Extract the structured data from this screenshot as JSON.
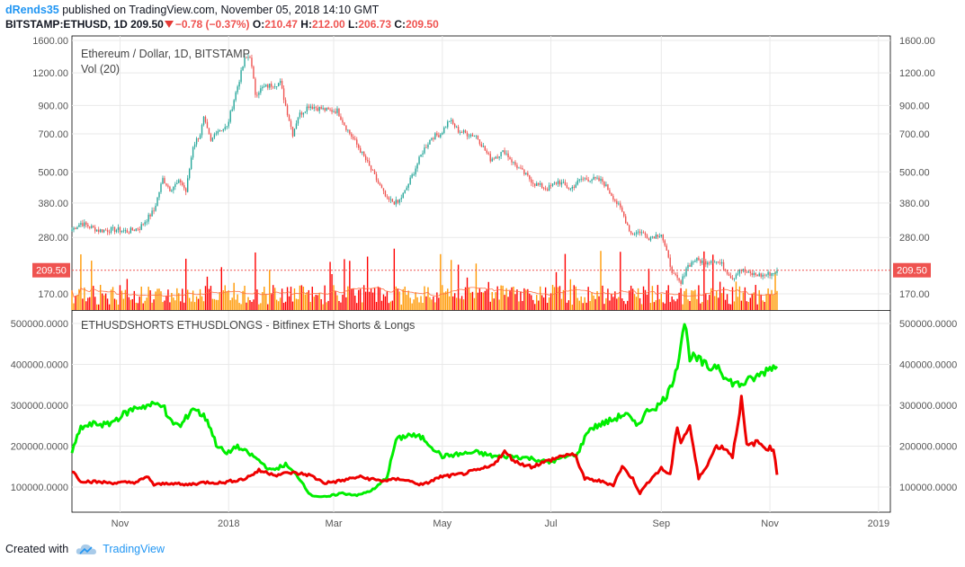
{
  "header": {
    "author": "dRends35",
    "published": "published on TradingView.com, November 05, 2018 14:10 GMT",
    "symbol": "BITSTAMP:ETHUSD, 1D",
    "last": "209.50",
    "change": "−0.78 (−0.37%)",
    "open_label": "O:",
    "open": "210.47",
    "high_label": "H:",
    "high": "212.00",
    "low_label": "L:",
    "low": "206.73",
    "close_label": "C:",
    "close": "209.50"
  },
  "footer": {
    "created_with": "Created with",
    "brand": "TradingView"
  },
  "colors": {
    "up": "#26a69a",
    "down": "#ef5350",
    "longs": "#00ee00",
    "shorts": "#ee0000",
    "vol_red": "#ff0000",
    "vol_orange": "#ff9800",
    "price_tag": "#ef5350"
  },
  "chart_data": [
    {
      "type": "candlestick",
      "title": "Ethereum / Dollar, 1D, BITSTAMP",
      "subtitle": "Vol (20)",
      "y_scale": "log",
      "y_ticks": [
        "1600.00",
        "1200.00",
        "900.00",
        "700.00",
        "500.00",
        "380.00",
        "280.00",
        "170.00"
      ],
      "y_tick_values": [
        1600,
        1200,
        900,
        700,
        500,
        380,
        280,
        170
      ],
      "last_price_label": "209.50",
      "last_price": 209.5,
      "close_path": [
        [
          "2017-10-05",
          300
        ],
        [
          "2017-10-10",
          318
        ],
        [
          "2017-10-20",
          298
        ],
        [
          "2017-10-30",
          300
        ],
        [
          "2017-11-05",
          295
        ],
        [
          "2017-11-12",
          305
        ],
        [
          "2017-11-20",
          355
        ],
        [
          "2017-11-25",
          470
        ],
        [
          "2017-11-29",
          430
        ],
        [
          "2017-12-05",
          460
        ],
        [
          "2017-12-08",
          420
        ],
        [
          "2017-12-12",
          630
        ],
        [
          "2017-12-16",
          700
        ],
        [
          "2017-12-18",
          800
        ],
        [
          "2017-12-22",
          650
        ],
        [
          "2017-12-25",
          720
        ],
        [
          "2017-12-31",
          740
        ],
        [
          "2018-01-04",
          950
        ],
        [
          "2018-01-08",
          1200
        ],
        [
          "2018-01-10",
          1350
        ],
        [
          "2018-01-13",
          1400
        ],
        [
          "2018-01-16",
          1000
        ],
        [
          "2018-01-20",
          1050
        ],
        [
          "2018-01-25",
          1080
        ],
        [
          "2018-01-30",
          1100
        ],
        [
          "2018-02-02",
          900
        ],
        [
          "2018-02-06",
          700
        ],
        [
          "2018-02-09",
          820
        ],
        [
          "2018-02-15",
          900
        ],
        [
          "2018-02-20",
          880
        ],
        [
          "2018-02-26",
          860
        ],
        [
          "2018-03-03",
          860
        ],
        [
          "2018-03-08",
          740
        ],
        [
          "2018-03-15",
          620
        ],
        [
          "2018-03-20",
          540
        ],
        [
          "2018-03-27",
          440
        ],
        [
          "2018-03-31",
          390
        ],
        [
          "2018-04-06",
          380
        ],
        [
          "2018-04-10",
          420
        ],
        [
          "2018-04-15",
          500
        ],
        [
          "2018-04-20",
          600
        ],
        [
          "2018-04-25",
          680
        ],
        [
          "2018-04-30",
          700
        ],
        [
          "2018-05-05",
          790
        ],
        [
          "2018-05-10",
          720
        ],
        [
          "2018-05-15",
          700
        ],
        [
          "2018-05-20",
          690
        ],
        [
          "2018-05-28",
          560
        ],
        [
          "2018-06-05",
          600
        ],
        [
          "2018-06-10",
          540
        ],
        [
          "2018-06-15",
          500
        ],
        [
          "2018-06-22",
          450
        ],
        [
          "2018-06-29",
          430
        ],
        [
          "2018-07-05",
          460
        ],
        [
          "2018-07-12",
          430
        ],
        [
          "2018-07-18",
          470
        ],
        [
          "2018-07-24",
          470
        ],
        [
          "2018-07-30",
          460
        ],
        [
          "2018-08-05",
          400
        ],
        [
          "2018-08-10",
          350
        ],
        [
          "2018-08-15",
          290
        ],
        [
          "2018-08-20",
          295
        ],
        [
          "2018-08-25",
          280
        ],
        [
          "2018-09-01",
          290
        ],
        [
          "2018-09-05",
          230
        ],
        [
          "2018-09-08",
          200
        ],
        [
          "2018-09-12",
          185
        ],
        [
          "2018-09-15",
          215
        ],
        [
          "2018-09-20",
          230
        ],
        [
          "2018-09-25",
          225
        ],
        [
          "2018-09-30",
          230
        ],
        [
          "2018-10-05",
          220
        ],
        [
          "2018-10-11",
          195
        ],
        [
          "2018-10-15",
          212
        ],
        [
          "2018-10-20",
          203
        ],
        [
          "2018-10-28",
          200
        ],
        [
          "2018-11-03",
          205
        ],
        [
          "2018-11-05",
          209.5
        ]
      ]
    },
    {
      "type": "line",
      "title": "ETHUSDSHORTS ETHUSDLONGS - Bitfinex ETH Shorts & Longs",
      "y_ticks": [
        "500000.0000",
        "400000.0000",
        "300000.0000",
        "200000.0000",
        "100000.0000"
      ],
      "y_tick_values": [
        500000,
        400000,
        300000,
        200000,
        100000
      ],
      "x_ticks": [
        {
          "label": "Nov",
          "date": "2017-11-01"
        },
        {
          "label": "2018",
          "date": "2018-01-01"
        },
        {
          "label": "Mar",
          "date": "2018-03-01"
        },
        {
          "label": "May",
          "date": "2018-05-01"
        },
        {
          "label": "Jul",
          "date": "2018-07-01"
        },
        {
          "label": "Sep",
          "date": "2018-09-01"
        },
        {
          "label": "Nov",
          "date": "2018-11-01"
        },
        {
          "label": "2019",
          "date": "2019-01-01"
        }
      ],
      "series": [
        {
          "color": "#00ee00",
          "points": [
            [
              "2017-10-05",
              185000
            ],
            [
              "2017-10-10",
              245000
            ],
            [
              "2017-10-18",
              255000
            ],
            [
              "2017-10-25",
              252000
            ],
            [
              "2017-11-02",
              275000
            ],
            [
              "2017-11-10",
              295000
            ],
            [
              "2017-11-18",
              300000
            ],
            [
              "2017-11-25",
              305000
            ],
            [
              "2017-11-28",
              265000
            ],
            [
              "2017-12-05",
              248000
            ],
            [
              "2017-12-12",
              295000
            ],
            [
              "2017-12-20",
              265000
            ],
            [
              "2017-12-25",
              205000
            ],
            [
              "2017-12-31",
              180000
            ],
            [
              "2018-01-05",
              200000
            ],
            [
              "2018-01-15",
              175000
            ],
            [
              "2018-01-25",
              140000
            ],
            [
              "2018-02-02",
              155000
            ],
            [
              "2018-02-10",
              120000
            ],
            [
              "2018-02-16",
              80000
            ],
            [
              "2018-02-25",
              75000
            ],
            [
              "2018-03-05",
              85000
            ],
            [
              "2018-03-15",
              80000
            ],
            [
              "2018-03-24",
              95000
            ],
            [
              "2018-03-31",
              125000
            ],
            [
              "2018-04-05",
              215000
            ],
            [
              "2018-04-12",
              228000
            ],
            [
              "2018-04-20",
              220000
            ],
            [
              "2018-04-26",
              195000
            ],
            [
              "2018-05-01",
              175000
            ],
            [
              "2018-05-10",
              180000
            ],
            [
              "2018-05-20",
              185000
            ],
            [
              "2018-05-30",
              175000
            ],
            [
              "2018-06-10",
              175000
            ],
            [
              "2018-06-20",
              170000
            ],
            [
              "2018-06-30",
              160000
            ],
            [
              "2018-07-10",
              175000
            ],
            [
              "2018-07-16",
              180000
            ],
            [
              "2018-07-22",
              240000
            ],
            [
              "2018-07-30",
              255000
            ],
            [
              "2018-08-05",
              265000
            ],
            [
              "2018-08-12",
              280000
            ],
            [
              "2018-08-18",
              250000
            ],
            [
              "2018-08-25",
              290000
            ],
            [
              "2018-08-31",
              300000
            ],
            [
              "2018-09-06",
              340000
            ],
            [
              "2018-09-10",
              400000
            ],
            [
              "2018-09-14",
              505000
            ],
            [
              "2018-09-17",
              420000
            ],
            [
              "2018-09-22",
              410000
            ],
            [
              "2018-09-28",
              390000
            ],
            [
              "2018-10-03",
              400000
            ],
            [
              "2018-10-08",
              360000
            ],
            [
              "2018-10-15",
              350000
            ],
            [
              "2018-10-25",
              370000
            ],
            [
              "2018-11-02",
              395000
            ],
            [
              "2018-11-05",
              395000
            ]
          ]
        },
        {
          "color": "#ee0000",
          "points": [
            [
              "2017-10-05",
              140000
            ],
            [
              "2017-10-10",
              115000
            ],
            [
              "2017-10-20",
              112000
            ],
            [
              "2017-10-30",
              110000
            ],
            [
              "2017-11-10",
              112000
            ],
            [
              "2017-11-17",
              125000
            ],
            [
              "2017-11-20",
              105000
            ],
            [
              "2017-11-30",
              110000
            ],
            [
              "2017-12-07",
              105000
            ],
            [
              "2017-12-20",
              112000
            ],
            [
              "2017-12-28",
              110000
            ],
            [
              "2018-01-03",
              115000
            ],
            [
              "2018-01-10",
              120000
            ],
            [
              "2018-01-18",
              140000
            ],
            [
              "2018-01-28",
              130000
            ],
            [
              "2018-02-05",
              135000
            ],
            [
              "2018-02-15",
              130000
            ],
            [
              "2018-02-24",
              110000
            ],
            [
              "2018-03-05",
              115000
            ],
            [
              "2018-03-15",
              125000
            ],
            [
              "2018-03-28",
              115000
            ],
            [
              "2018-04-08",
              120000
            ],
            [
              "2018-04-20",
              105000
            ],
            [
              "2018-04-30",
              125000
            ],
            [
              "2018-05-10",
              130000
            ],
            [
              "2018-05-20",
              140000
            ],
            [
              "2018-05-28",
              150000
            ],
            [
              "2018-06-05",
              185000
            ],
            [
              "2018-06-12",
              160000
            ],
            [
              "2018-06-20",
              150000
            ],
            [
              "2018-06-30",
              165000
            ],
            [
              "2018-07-10",
              180000
            ],
            [
              "2018-07-15",
              175000
            ],
            [
              "2018-07-20",
              120000
            ],
            [
              "2018-07-28",
              115000
            ],
            [
              "2018-08-05",
              105000
            ],
            [
              "2018-08-10",
              150000
            ],
            [
              "2018-08-16",
              120000
            ],
            [
              "2018-08-20",
              85000
            ],
            [
              "2018-08-26",
              120000
            ],
            [
              "2018-09-01",
              145000
            ],
            [
              "2018-09-06",
              130000
            ],
            [
              "2018-09-10",
              250000
            ],
            [
              "2018-09-12",
              210000
            ],
            [
              "2018-09-17",
              250000
            ],
            [
              "2018-09-22",
              120000
            ],
            [
              "2018-09-28",
              165000
            ],
            [
              "2018-10-02",
              200000
            ],
            [
              "2018-10-07",
              195000
            ],
            [
              "2018-10-11",
              175000
            ],
            [
              "2018-10-16",
              315000
            ],
            [
              "2018-10-19",
              200000
            ],
            [
              "2018-10-25",
              210000
            ],
            [
              "2018-10-30",
              195000
            ],
            [
              "2018-11-03",
              195000
            ],
            [
              "2018-11-05",
              130000
            ]
          ]
        }
      ]
    }
  ]
}
